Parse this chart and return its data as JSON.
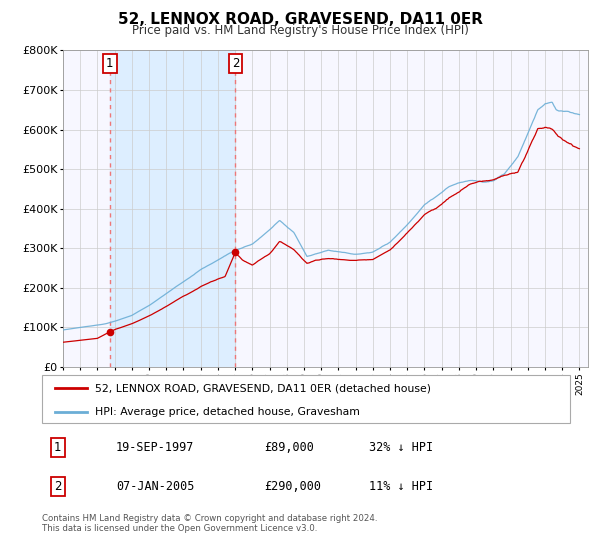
{
  "title": "52, LENNOX ROAD, GRAVESEND, DA11 0ER",
  "subtitle": "Price paid vs. HM Land Registry's House Price Index (HPI)",
  "sale1_date_str": "19-SEP-1997",
  "sale1_price": 89000,
  "sale1_label": "1",
  "sale1_pct": "32% ↓ HPI",
  "sale1_year": 1997.72,
  "sale2_date_str": "07-JAN-2005",
  "sale2_price": 290000,
  "sale2_label": "2",
  "sale2_pct": "11% ↓ HPI",
  "sale2_year": 2005.02,
  "xmin": 1995.0,
  "xmax": 2025.5,
  "ymin": 0,
  "ymax": 800000,
  "yticks": [
    0,
    100000,
    200000,
    300000,
    400000,
    500000,
    600000,
    700000,
    800000
  ],
  "ytick_labels": [
    "£0",
    "£100K",
    "£200K",
    "£300K",
    "£400K",
    "£500K",
    "£600K",
    "£700K",
    "£800K"
  ],
  "hpi_color": "#6baed6",
  "price_color": "#cc0000",
  "vline_color": "#ee7777",
  "shade_color": "#ddeeff",
  "grid_color": "#cccccc",
  "legend_label_price": "52, LENNOX ROAD, GRAVESEND, DA11 0ER (detached house)",
  "legend_label_hpi": "HPI: Average price, detached house, Gravesham",
  "footer_text": "Contains HM Land Registry data © Crown copyright and database right 2024.\nThis data is licensed under the Open Government Licence v3.0."
}
